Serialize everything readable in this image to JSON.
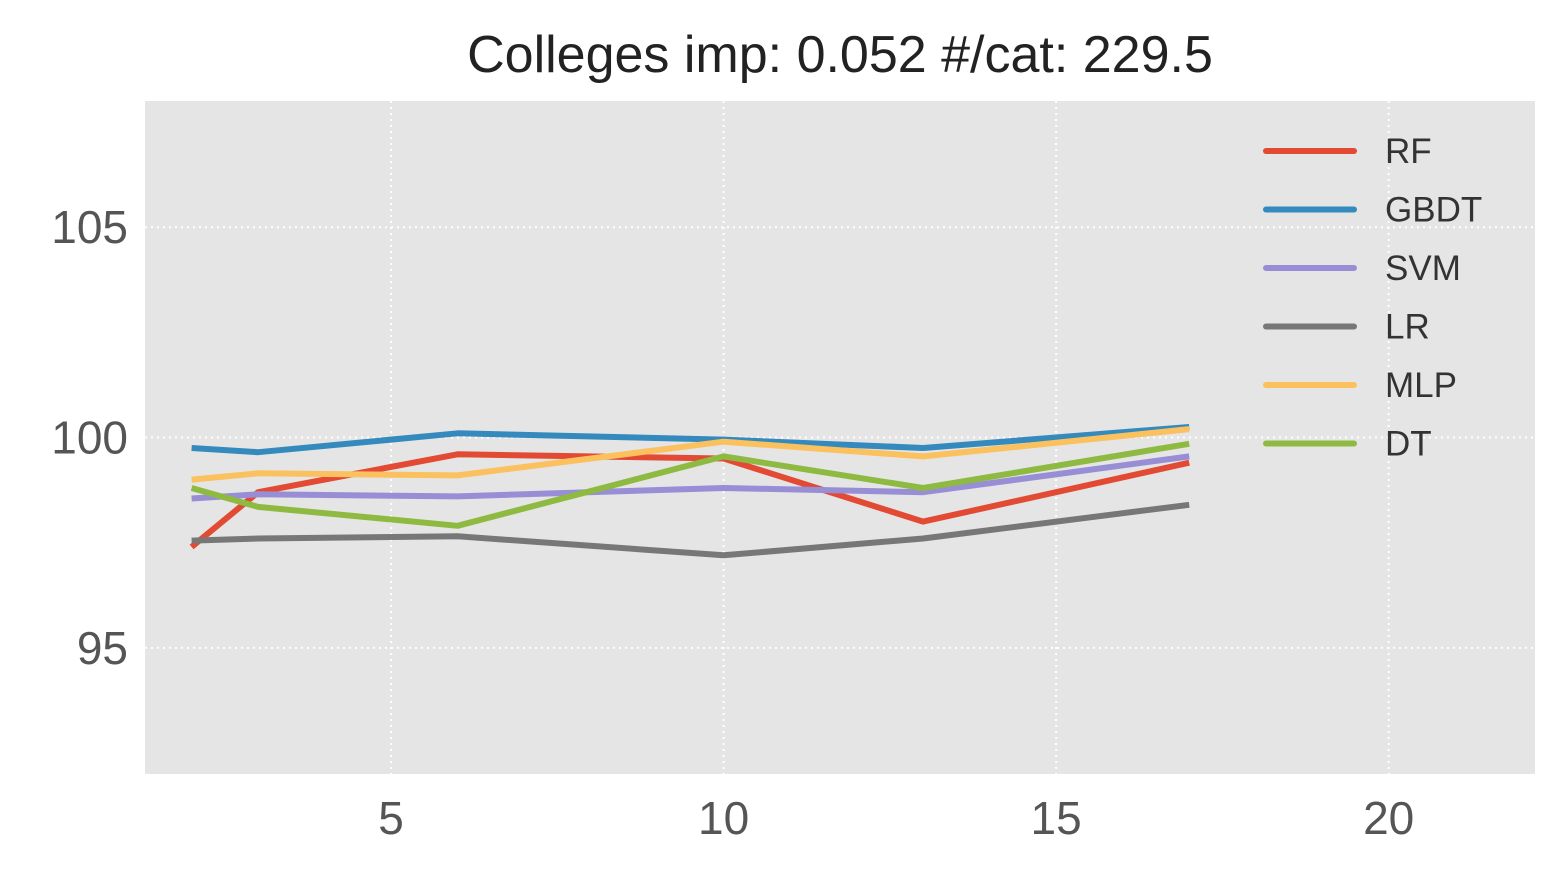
{
  "chart_data": {
    "type": "line",
    "title": "Colleges imp: 0.052 #/cat: 229.5",
    "xlabel": "",
    "ylabel": "",
    "xlim": [
      1.3,
      22.2
    ],
    "ylim": [
      92,
      108
    ],
    "xticks": [
      5,
      10,
      15,
      20
    ],
    "yticks": [
      95,
      100,
      105
    ],
    "grid": true,
    "legend_position": "top-right",
    "series": [
      {
        "name": "RF",
        "color": "#E24A33",
        "x": [
          2,
          3,
          6,
          10,
          13,
          17
        ],
        "y": [
          97.4,
          98.7,
          99.6,
          99.5,
          98.0,
          99.4
        ]
      },
      {
        "name": "GBDT",
        "color": "#348ABD",
        "x": [
          2,
          3,
          6,
          10,
          13,
          17
        ],
        "y": [
          99.75,
          99.65,
          100.1,
          99.95,
          99.75,
          100.25
        ]
      },
      {
        "name": "SVM",
        "color": "#988ED5",
        "x": [
          2,
          3,
          6,
          10,
          13,
          17
        ],
        "y": [
          98.55,
          98.65,
          98.6,
          98.8,
          98.7,
          99.55
        ]
      },
      {
        "name": "LR",
        "color": "#777777",
        "x": [
          2,
          3,
          6,
          10,
          13,
          17
        ],
        "y": [
          97.55,
          97.6,
          97.65,
          97.2,
          97.6,
          98.4
        ]
      },
      {
        "name": "MLP",
        "color": "#FBC15E",
        "x": [
          2,
          3,
          6,
          10,
          13,
          17
        ],
        "y": [
          99.0,
          99.15,
          99.1,
          99.9,
          99.55,
          100.2
        ]
      },
      {
        "name": "DT",
        "color": "#8EBA42",
        "x": [
          2,
          3,
          6,
          10,
          13,
          17
        ],
        "y": [
          98.8,
          98.35,
          97.9,
          99.55,
          98.8,
          99.85
        ]
      }
    ]
  },
  "style": {
    "plot_background": "#E5E5E5",
    "grid_color": "#FFFFFF",
    "tick_label_color": "#555555",
    "title_color": "#222222",
    "legend_text_color": "#333333"
  }
}
